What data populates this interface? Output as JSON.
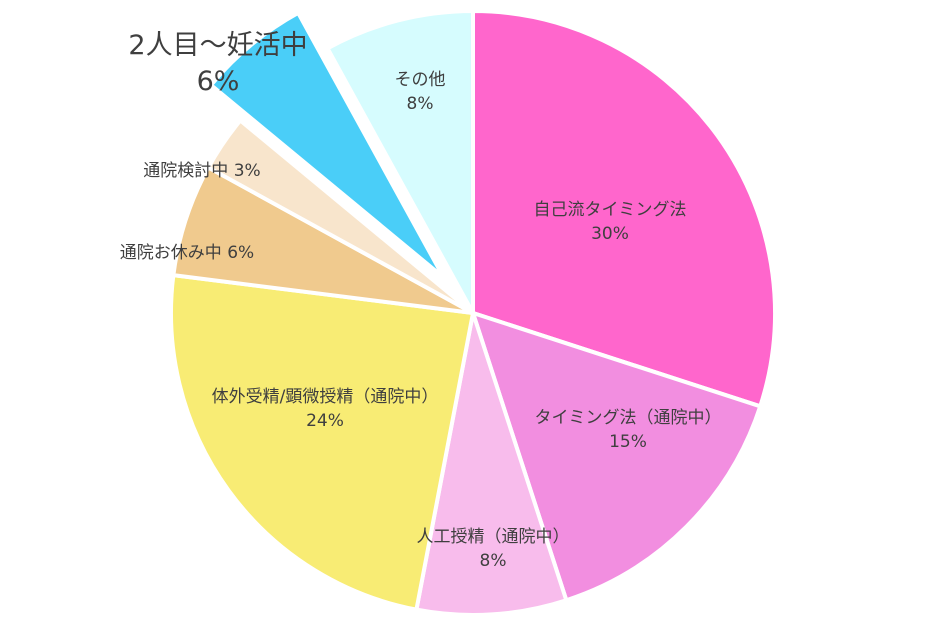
{
  "chart_data": {
    "type": "pie",
    "title": "",
    "start": "top",
    "direction": "clockwise",
    "slices": [
      {
        "label": "自己流タイミング法",
        "value": 30,
        "value_label": "30%",
        "color": "#FF66CC",
        "exploded": false
      },
      {
        "label": "タイミング法（通院中）",
        "value": 15,
        "value_label": "15%",
        "color": "#F28EE0",
        "exploded": false
      },
      {
        "label": "人工授精（通院中）",
        "value": 8,
        "value_label": "8%",
        "color": "#F8BCEC",
        "exploded": false
      },
      {
        "label": "体外受精/顕微授精（通院中）",
        "value": 24,
        "value_label": "24%",
        "color": "#F8EC74",
        "exploded": false
      },
      {
        "label": "通院お休み中",
        "value": 6,
        "value_label": "6%",
        "color": "#F0CA8E",
        "exploded": false
      },
      {
        "label": "通院検討中",
        "value": 3,
        "value_label": "3%",
        "color": "#F8E5CC",
        "exploded": false
      },
      {
        "label": "2人目～妊活中",
        "value": 6,
        "value_label": "6%",
        "color": "#4ACEF8",
        "exploded": true
      },
      {
        "label": "その他",
        "value": 8,
        "value_label": "8%",
        "color": "#D6FCFE",
        "exploded": false
      }
    ]
  }
}
